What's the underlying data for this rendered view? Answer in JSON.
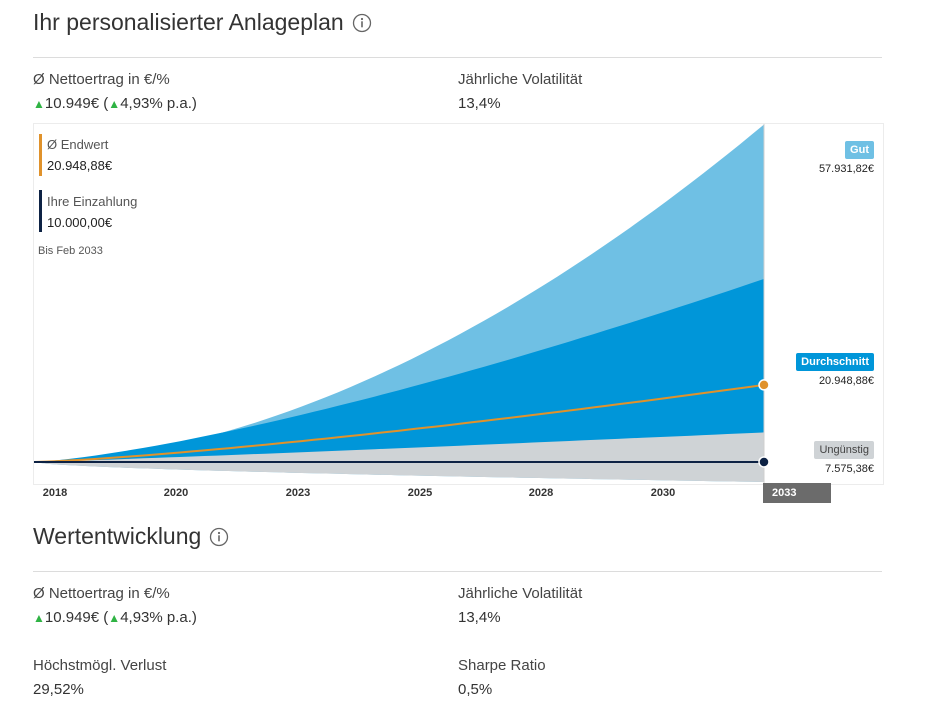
{
  "plan": {
    "title": "Ihr personalisierter Anlageplan",
    "net_return_label": "Ø Nettoertrag in €/%",
    "net_return_abs": "10.949€",
    "net_return_open": "(",
    "net_return_pct": "4,93% p.a.)",
    "volatility_label": "Jährliche Volatilität",
    "volatility_value": "13,4%"
  },
  "chart_data": {
    "type": "area",
    "legend": {
      "endwert_label": "Ø Endwert",
      "endwert_value": "20.948,88€",
      "einzahlung_label": "Ihre Einzahlung",
      "einzahlung_value": "10.000,00€",
      "since_label": "Bis Feb 2033"
    },
    "x_ticks": [
      "2018",
      "2020",
      "2023",
      "2025",
      "2028",
      "2030"
    ],
    "x_tick_years": [
      2018,
      2020,
      2023,
      2025,
      2028,
      2030
    ],
    "end_year_label": "2033",
    "x_range": [
      2018,
      2033
    ],
    "y_range": [
      0,
      58000
    ],
    "start_value": 10000,
    "scenarios": [
      {
        "name": "Gut",
        "end_value": 57931.82,
        "label": "57.931,82€",
        "color": "#6fc0e4"
      },
      {
        "name": "Durchschnitt",
        "end_value": 20948.88,
        "label": "20.948,88€",
        "color": "#0096d9"
      },
      {
        "name": "Ungünstig",
        "end_value": 7575.38,
        "label": "7.575,38€",
        "color": "#cfd3d6"
      }
    ],
    "average_line": {
      "end_value": 20948.88,
      "color": "#e0922b"
    },
    "deposit_line": {
      "value": 10000,
      "color": "#0d2244"
    }
  },
  "development": {
    "title": "Wertentwicklung",
    "net_return_label": "Ø Nettoertrag in €/%",
    "net_return_abs": "10.949€",
    "net_return_open": "(",
    "net_return_pct": "4,93% p.a.)",
    "volatility_label": "Jährliche Volatilität",
    "volatility_value": "13,4%",
    "max_loss_label": "Höchstmögl. Verlust",
    "max_loss_value": "29,52%",
    "sharpe_label": "Sharpe Ratio",
    "sharpe_value": "0,5%"
  }
}
